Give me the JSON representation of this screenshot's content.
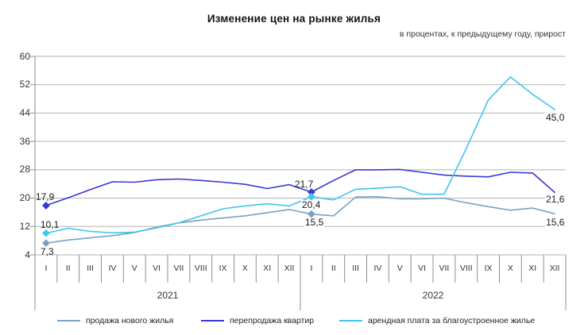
{
  "title": "Изменение цен на рынке жилья",
  "subtitle": "в процентах, к предыдущему году, прирост",
  "colors": {
    "new_housing": "#7aa1c3",
    "resale": "#3737d8",
    "rent": "#3fc5ef",
    "grid": "#b3b3b3",
    "axis": "#8f8f8f"
  },
  "chart_data": {
    "type": "line",
    "years": [
      "2021",
      "2022"
    ],
    "categories": [
      "I",
      "II",
      "III",
      "IV",
      "V",
      "VI",
      "VII",
      "VIII",
      "IX",
      "X",
      "XI",
      "XII",
      "I",
      "II",
      "III",
      "IV",
      "V",
      "VI",
      "VII",
      "VIII",
      "IX",
      "X",
      "XI",
      "XII"
    ],
    "ylim": [
      4,
      60
    ],
    "yticks": [
      60,
      52,
      44,
      36,
      28,
      20,
      12,
      4
    ],
    "grid": true,
    "legend_position": "bottom",
    "series": [
      {
        "key": "new-housing-sale",
        "name": "продажа нового  жилья",
        "color": "#7aa1c3",
        "values": [
          7.3,
          8.2,
          8.8,
          9.4,
          10.3,
          11.8,
          13.0,
          13.8,
          14.4,
          15.0,
          15.9,
          16.8,
          15.5,
          15.0,
          20.3,
          20.4,
          19.8,
          19.8,
          20.0,
          18.7,
          17.6,
          16.6,
          17.2,
          15.6
        ]
      },
      {
        "key": "apartment-resale",
        "name": "перепродажа квартир",
        "color": "#3737d8",
        "values": [
          17.9,
          20.1,
          22.4,
          24.6,
          24.5,
          25.2,
          25.4,
          25.0,
          24.5,
          23.9,
          22.7,
          23.8,
          21.7,
          25.0,
          28.0,
          28.0,
          28.1,
          27.3,
          26.5,
          26.2,
          26.0,
          27.3,
          27.1,
          21.6
        ]
      },
      {
        "key": "rent-improved-housing",
        "name": "арендная плата за благоустроенное  жилье",
        "color": "#3fc5ef",
        "values": [
          10.1,
          11.5,
          10.6,
          10.2,
          10.4,
          11.6,
          13.0,
          15.0,
          17.0,
          17.8,
          18.4,
          17.8,
          20.4,
          19.5,
          22.5,
          22.8,
          23.2,
          21.1,
          21.1,
          34.0,
          47.7,
          54.2,
          49.3,
          45.0
        ]
      }
    ],
    "marked_month_indices": [
      0,
      12
    ],
    "point_labels": [
      {
        "series": "apartment-resale",
        "month_index": 0,
        "label": "17,9"
      },
      {
        "series": "rent-improved-housing",
        "month_index": 0,
        "label": "10,1"
      },
      {
        "series": "new-housing-sale",
        "month_index": 0,
        "label": "7,3"
      },
      {
        "series": "apartment-resale",
        "month_index": 12,
        "label": "21,7"
      },
      {
        "series": "rent-improved-housing",
        "month_index": 12,
        "label": "20,4"
      },
      {
        "series": "new-housing-sale",
        "month_index": 12,
        "label": "15,5"
      },
      {
        "series": "rent-improved-housing",
        "month_index": 23,
        "label": "45,0"
      },
      {
        "series": "apartment-resale",
        "month_index": 23,
        "label": "21,6"
      },
      {
        "series": "new-housing-sale",
        "month_index": 23,
        "label": "15,6"
      }
    ]
  }
}
